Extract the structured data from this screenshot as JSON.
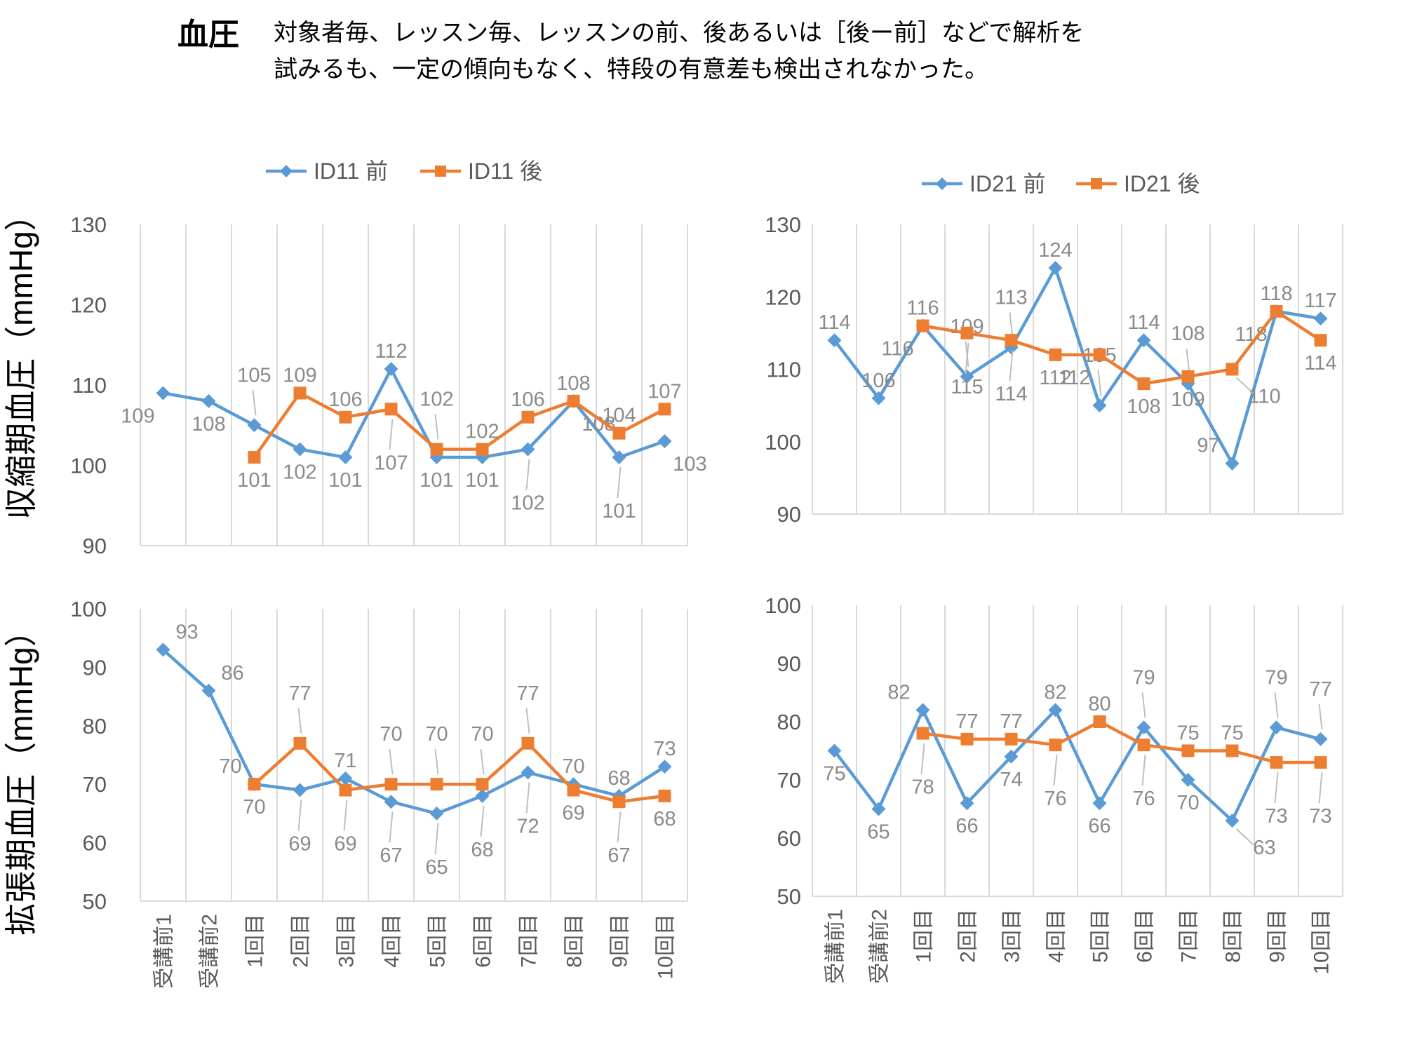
{
  "title": {
    "label": "血圧",
    "line1": "対象者毎、レッスン毎、レッスンの前、後あるいは［後ー前］などで解析を",
    "line2": "試みるも、一定の傾向もなく、特段の有意差も検出されなかった。"
  },
  "axis_titles": {
    "systolic": "収縮期血圧（mmHg）",
    "diastolic": "拡張期血圧（mmHg）"
  },
  "chart_data": {
    "type": "line",
    "grid": "vertical-only",
    "categories": [
      "受講前1",
      "受講前2",
      "1回目",
      "2回目",
      "3回目",
      "4回目",
      "5回目",
      "6回目",
      "7回目",
      "8回目",
      "9回目",
      "10回目"
    ],
    "style": {
      "blue": "#5B9BD5",
      "orange": "#ED7D31",
      "grid_color": "#D9D9D9",
      "data_label_color": "#8A8A8A",
      "tick_label_color": "#595959",
      "leader_color": "#BFBFBF"
    },
    "charts": [
      {
        "name": "systolic-id11",
        "ylabel": "収縮期血圧（mmHg）",
        "ylim": [
          90,
          130
        ],
        "yticks": [
          90,
          100,
          110,
          120,
          130
        ],
        "legend_position": "top",
        "legend": [
          {
            "label": "ID11 前",
            "series": 0
          },
          {
            "label": "ID11 後",
            "series": 1
          }
        ],
        "series": [
          {
            "name": "ID11 前",
            "color_key": "blue",
            "marker": "diamond",
            "values": [
              109,
              108,
              105,
              102,
              101,
              112,
              101,
              101,
              102,
              108,
              101,
              103
            ],
            "label_pos": [
              "bl",
              "b",
              "aL",
              "b",
              "b",
              "a",
              "b",
              "b",
              "bL",
              "br",
              "bL",
              "br"
            ]
          },
          {
            "name": "ID11 後",
            "color_key": "orange",
            "marker": "square",
            "values": [
              null,
              null,
              101,
              109,
              106,
              107,
              102,
              102,
              106,
              108,
              104,
              107
            ],
            "label_pos": [
              null,
              null,
              "b",
              "a",
              "a",
              "bL",
              "aL",
              "a",
              "a",
              "a",
              "a",
              "a"
            ]
          }
        ]
      },
      {
        "name": "systolic-id21",
        "ylabel": "収縮期血圧（mmHg）",
        "ylim": [
          90,
          130
        ],
        "yticks": [
          90,
          100,
          110,
          120,
          130
        ],
        "legend_position": "top",
        "legend": [
          {
            "label": "ID21 前",
            "series": 0
          },
          {
            "label": "ID21 後",
            "series": 1
          }
        ],
        "series": [
          {
            "name": "ID21 前",
            "color_key": "blue",
            "marker": "diamond",
            "values": [
              114,
              106,
              116,
              109,
              113,
              124,
              105,
              114,
              108,
              97,
              118,
              117
            ],
            "label_pos": [
              "a",
              "a",
              "bl",
              "aL",
              "aL",
              "a",
              "aL",
              "a",
              "aL",
              "al",
              "bl",
              "a"
            ]
          },
          {
            "name": "ID21 後",
            "color_key": "orange",
            "marker": "square",
            "values": [
              null,
              null,
              116,
              115,
              114,
              112,
              112,
              108,
              109,
              110,
              118,
              114
            ],
            "label_pos": [
              null,
              null,
              "a",
              "bL",
              "bL",
              "b",
              "bl",
              "b",
              "b",
              "brL",
              "a",
              "b"
            ]
          }
        ]
      },
      {
        "name": "diastolic-id11",
        "ylabel": "拡張期血圧（mmHg）",
        "ylim": [
          50,
          100
        ],
        "yticks": [
          50,
          60,
          70,
          80,
          90,
          100
        ],
        "legend_position": "none",
        "legend": null,
        "series": [
          {
            "name": "ID11 前",
            "color_key": "blue",
            "marker": "diamond",
            "values": [
              93,
              86,
              70,
              69,
              71,
              67,
              65,
              68,
              72,
              70,
              68,
              73
            ],
            "label_pos": [
              "ar",
              "ar",
              "al",
              "bL",
              "a",
              "bL",
              "bL",
              "bL",
              "bL",
              "a",
              "a",
              "a"
            ]
          },
          {
            "name": "ID11 後",
            "color_key": "orange",
            "marker": "square",
            "values": [
              null,
              null,
              70,
              77,
              69,
              70,
              70,
              70,
              77,
              69,
              67,
              68
            ],
            "label_pos": [
              null,
              null,
              "b",
              "aL",
              "bL",
              "aL",
              "aL",
              "aL",
              "aL",
              "b",
              "bL",
              "b"
            ]
          }
        ]
      },
      {
        "name": "diastolic-id21",
        "ylabel": "拡張期血圧（mmHg）",
        "ylim": [
          50,
          100
        ],
        "yticks": [
          50,
          60,
          70,
          80,
          90,
          100
        ],
        "legend_position": "none",
        "legend": null,
        "series": [
          {
            "name": "ID21 前",
            "color_key": "blue",
            "marker": "diamond",
            "values": [
              75,
              65,
              82,
              66,
              74,
              82,
              66,
              79,
              70,
              63,
              79,
              77
            ],
            "label_pos": [
              "b",
              "b",
              "al",
              "b",
              "b",
              "a",
              "b",
              "aL",
              "b",
              "brL",
              "aL",
              "aL"
            ]
          },
          {
            "name": "ID21 後",
            "color_key": "orange",
            "marker": "square",
            "values": [
              null,
              null,
              78,
              77,
              77,
              76,
              80,
              76,
              75,
              75,
              73,
              73
            ],
            "label_pos": [
              null,
              null,
              "bL",
              "a",
              "a",
              "bL",
              "a",
              "bL",
              "a",
              "a",
              "bL",
              "bL"
            ]
          }
        ]
      }
    ]
  }
}
